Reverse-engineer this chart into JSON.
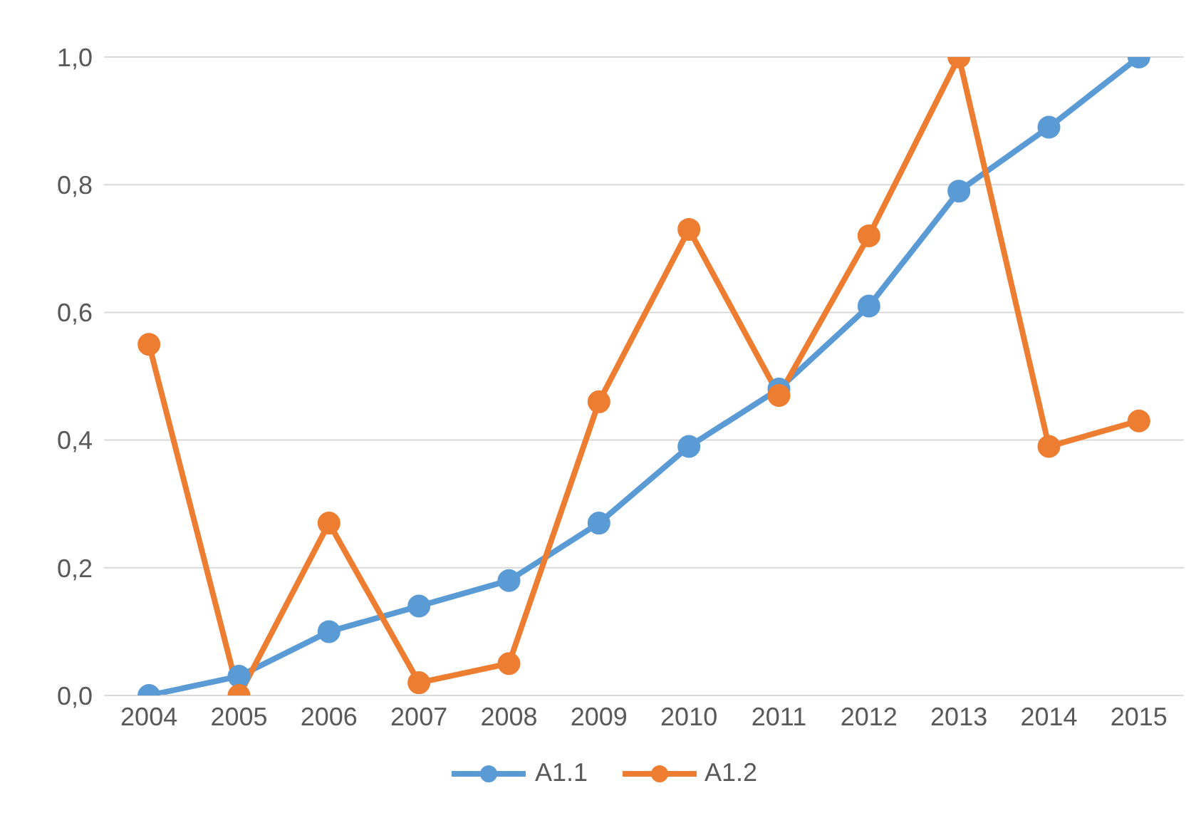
{
  "chart_data": {
    "type": "line",
    "categories": [
      "2004",
      "2005",
      "2006",
      "2007",
      "2008",
      "2009",
      "2010",
      "2011",
      "2012",
      "2013",
      "2014",
      "2015"
    ],
    "series": [
      {
        "name": "A1.1",
        "color": "#5b9bd5",
        "values": [
          0,
          0.03,
          0.1,
          0.14,
          0.18,
          0.27,
          0.39,
          0.48,
          0.61,
          0.79,
          0.89,
          1.0
        ]
      },
      {
        "name": "A1.2",
        "color": "#ed7d31",
        "values": [
          0.55,
          0,
          0.27,
          0.02,
          0.05,
          0.46,
          0.73,
          0.47,
          0.72,
          1.0,
          0.39,
          0.43
        ]
      }
    ],
    "ylim": [
      0,
      1
    ],
    "yticks": [
      {
        "value": 0,
        "label": "0,0"
      },
      {
        "value": 0.2,
        "label": "0,2"
      },
      {
        "value": 0.4,
        "label": "0,4"
      },
      {
        "value": 0.6,
        "label": "0,6"
      },
      {
        "value": 0.8,
        "label": "0,8"
      },
      {
        "value": 1,
        "label": "1,0"
      }
    ],
    "grid": "y",
    "legend": "bottom",
    "marker": "circle",
    "line_style": "solid"
  }
}
